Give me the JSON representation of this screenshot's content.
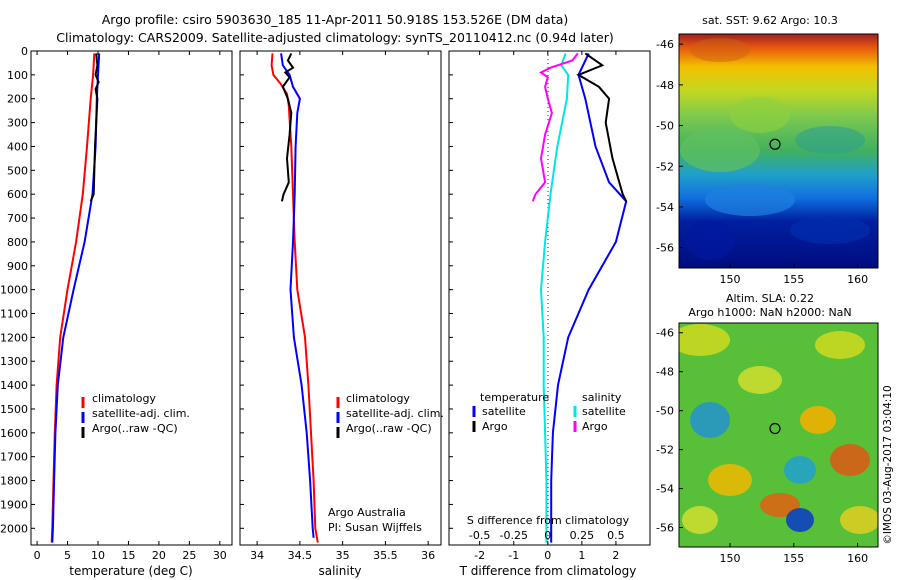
{
  "title": {
    "line1": "Argo profile: csiro 5903630_185 11-Apr-2011 50.918S 153.526E (DM data)",
    "line2": "Climatology: CARS2009. Satellite-adjusted climatology: synTS_20110412.nc (0.94d later)"
  },
  "credit": "©IMOS 03-Aug-2017 03:04:10",
  "colors": {
    "climatology": "#ff0000",
    "satellite": "#0000ff",
    "argo": "#000000",
    "s_satellite": "#00e5e5",
    "s_argo": "#ff00ff"
  },
  "chart_data": [
    {
      "id": "temperature",
      "type": "line",
      "xlabel": "temperature (deg C)",
      "ylabel": "",
      "xlim": [
        -1,
        32
      ],
      "ylim": [
        2070,
        0
      ],
      "xticks": [
        0,
        5,
        10,
        15,
        20,
        25,
        30
      ],
      "yticks": [
        0,
        100,
        200,
        300,
        400,
        500,
        600,
        700,
        800,
        900,
        1000,
        1100,
        1200,
        1300,
        1400,
        1500,
        1600,
        1700,
        1800,
        1900,
        2000
      ],
      "legend": [
        "climatology",
        "satellite-adj. clim.",
        "Argo(..raw -QC)"
      ],
      "legend_placement": "lower-right",
      "series": [
        {
          "name": "climatology",
          "color": "climatology",
          "points": [
            [
              9.4,
              10
            ],
            [
              9.2,
              100
            ],
            [
              8.8,
              200
            ],
            [
              8.2,
              400
            ],
            [
              7.5,
              600
            ],
            [
              6.4,
              800
            ],
            [
              5.0,
              1000
            ],
            [
              3.8,
              1200
            ],
            [
              3.2,
              1400
            ],
            [
              2.9,
              1600
            ],
            [
              2.7,
              1800
            ],
            [
              2.5,
              2000
            ],
            [
              2.4,
              2060
            ]
          ]
        },
        {
          "name": "satellite-adj. clim.",
          "color": "satellite",
          "points": [
            [
              10.2,
              10
            ],
            [
              10.0,
              100
            ],
            [
              9.8,
              200
            ],
            [
              9.6,
              400
            ],
            [
              9.1,
              600
            ],
            [
              7.8,
              800
            ],
            [
              6.0,
              1000
            ],
            [
              4.3,
              1200
            ],
            [
              3.4,
              1400
            ],
            [
              3.0,
              1600
            ],
            [
              2.8,
              1800
            ],
            [
              2.6,
              2000
            ],
            [
              2.5,
              2060
            ]
          ]
        },
        {
          "name": "Argo(..raw -QC)",
          "color": "argo",
          "points": [
            [
              9.7,
              10
            ],
            [
              9.9,
              60
            ],
            [
              9.6,
              100
            ],
            [
              10.1,
              130
            ],
            [
              9.6,
              160
            ],
            [
              9.9,
              200
            ],
            [
              9.5,
              400
            ],
            [
              9.3,
              600
            ],
            [
              8.8,
              630
            ]
          ]
        }
      ]
    },
    {
      "id": "salinity",
      "type": "line",
      "xlabel": "salinity",
      "ylabel": "",
      "xlim": [
        33.8,
        36.15
      ],
      "ylim": [
        2070,
        0
      ],
      "xticks": [
        34,
        34.5,
        35,
        35.5,
        36
      ],
      "legend": [
        "climatology",
        "satellite-adj. clim.",
        "Argo(..raw -QC)"
      ],
      "legend_placement": "lower-right",
      "annotation": [
        "Argo Australia",
        "PI: Susan Wijffels"
      ],
      "series": [
        {
          "name": "climatology",
          "color": "climatology",
          "points": [
            [
              34.18,
              10
            ],
            [
              34.17,
              60
            ],
            [
              34.19,
              100
            ],
            [
              34.28,
              140
            ],
            [
              34.35,
              180
            ],
            [
              34.37,
              230
            ],
            [
              34.4,
              400
            ],
            [
              34.42,
              600
            ],
            [
              34.44,
              800
            ],
            [
              34.47,
              1000
            ],
            [
              34.56,
              1200
            ],
            [
              34.6,
              1400
            ],
            [
              34.63,
              1600
            ],
            [
              34.66,
              1800
            ],
            [
              34.68,
              2000
            ],
            [
              34.71,
              2060
            ]
          ]
        },
        {
          "name": "satellite-adj. clim.",
          "color": "satellite",
          "points": [
            [
              34.28,
              10
            ],
            [
              34.3,
              60
            ],
            [
              34.38,
              100
            ],
            [
              34.42,
              150
            ],
            [
              34.5,
              200
            ],
            [
              34.47,
              260
            ],
            [
              34.45,
              400
            ],
            [
              34.44,
              600
            ],
            [
              34.42,
              800
            ],
            [
              34.39,
              1000
            ],
            [
              34.43,
              1200
            ],
            [
              34.52,
              1400
            ],
            [
              34.58,
              1600
            ],
            [
              34.62,
              1800
            ],
            [
              34.65,
              2000
            ],
            [
              34.66,
              2040
            ]
          ]
        },
        {
          "name": "Argo(..raw -QC)",
          "color": "argo",
          "points": [
            [
              34.4,
              10
            ],
            [
              34.36,
              40
            ],
            [
              34.42,
              70
            ],
            [
              34.33,
              90
            ],
            [
              34.38,
              110
            ],
            [
              34.3,
              150
            ],
            [
              34.36,
              200
            ],
            [
              34.4,
              260
            ],
            [
              34.38,
              350
            ],
            [
              34.35,
              450
            ],
            [
              34.37,
              550
            ],
            [
              34.31,
              600
            ],
            [
              34.29,
              630
            ]
          ]
        }
      ]
    },
    {
      "id": "difference",
      "type": "line",
      "xlabel": "T difference from climatology",
      "x2label": "S difference from climatology",
      "ylabel": "",
      "xlim": [
        -2.9,
        3.0
      ],
      "ylim": [
        2070,
        0
      ],
      "xticks": [
        -2,
        -1,
        0,
        1,
        2
      ],
      "x2lim": [
        -0.725,
        0.75
      ],
      "x2ticks": [
        -0.5,
        -0.25,
        0,
        0.25,
        0.5
      ],
      "legend_temperature": {
        "header": "temperature",
        "items": [
          "satellite",
          "Argo"
        ]
      },
      "legend_salinity": {
        "header": "salinity",
        "items": [
          "satellite",
          "Argo"
        ]
      },
      "legend_placement": "lower-center",
      "series": [
        {
          "name": "temperature satellite",
          "axis": "T",
          "color": "satellite",
          "points": [
            [
              1.2,
              10
            ],
            [
              0.9,
              100
            ],
            [
              1.1,
              200
            ],
            [
              1.4,
              400
            ],
            [
              1.8,
              550
            ],
            [
              2.3,
              630
            ],
            [
              2.0,
              800
            ],
            [
              1.2,
              1000
            ],
            [
              0.6,
              1200
            ],
            [
              0.3,
              1400
            ],
            [
              0.15,
              1600
            ],
            [
              0.1,
              1800
            ],
            [
              0.1,
              2000
            ],
            [
              0.1,
              2060
            ]
          ]
        },
        {
          "name": "temperature Argo",
          "axis": "T",
          "color": "argo",
          "points": [
            [
              1.1,
              10
            ],
            [
              1.6,
              60
            ],
            [
              0.9,
              100
            ],
            [
              1.5,
              150
            ],
            [
              1.8,
              200
            ],
            [
              1.7,
              300
            ],
            [
              1.9,
              450
            ],
            [
              2.1,
              550
            ],
            [
              2.2,
              600
            ],
            [
              2.3,
              630
            ]
          ]
        },
        {
          "name": "salinity satellite",
          "axis": "S",
          "color": "s_satellite",
          "points": [
            [
              0.13,
              10
            ],
            [
              0.1,
              60
            ],
            [
              0.15,
              100
            ],
            [
              0.14,
              200
            ],
            [
              0.07,
              400
            ],
            [
              0.02,
              600
            ],
            [
              -0.02,
              800
            ],
            [
              -0.05,
              1000
            ],
            [
              -0.03,
              1200
            ],
            [
              -0.03,
              1400
            ],
            [
              -0.02,
              1600
            ],
            [
              -0.01,
              1800
            ],
            [
              -0.01,
              2000
            ],
            [
              -0.01,
              2060
            ]
          ]
        },
        {
          "name": "salinity Argo",
          "axis": "S",
          "color": "s_argo",
          "points": [
            [
              0.22,
              10
            ],
            [
              0.18,
              40
            ],
            [
              0.02,
              70
            ],
            [
              -0.05,
              90
            ],
            [
              0.0,
              110
            ],
            [
              -0.02,
              150
            ],
            [
              0.0,
              200
            ],
            [
              0.03,
              260
            ],
            [
              -0.02,
              350
            ],
            [
              -0.05,
              450
            ],
            [
              -0.02,
              550
            ],
            [
              -0.09,
              600
            ],
            [
              -0.11,
              630
            ]
          ]
        }
      ]
    },
    {
      "id": "sst-map",
      "type": "heatmap",
      "title": "sat. SST: 9.62  Argo: 10.3",
      "xlim": [
        146,
        161.6
      ],
      "ylim": [
        -57,
        -45.5
      ],
      "xticks": [
        150,
        155,
        160
      ],
      "yticks": [
        -46,
        -48,
        -50,
        -52,
        -54,
        -56
      ],
      "marker": {
        "lon": 153.526,
        "lat": -50.918,
        "shape": "circle"
      }
    },
    {
      "id": "sla-map",
      "type": "heatmap",
      "title": "Altim. SLA: 0.22",
      "subtitle": "Argo h1000: NaN  h2000: NaN",
      "xlim": [
        146,
        161.6
      ],
      "ylim": [
        -57,
        -45.5
      ],
      "xticks": [
        150,
        155,
        160
      ],
      "yticks": [
        -46,
        -48,
        -50,
        -52,
        -54,
        -56
      ],
      "marker": {
        "lon": 153.526,
        "lat": -50.918,
        "shape": "circle"
      }
    }
  ]
}
